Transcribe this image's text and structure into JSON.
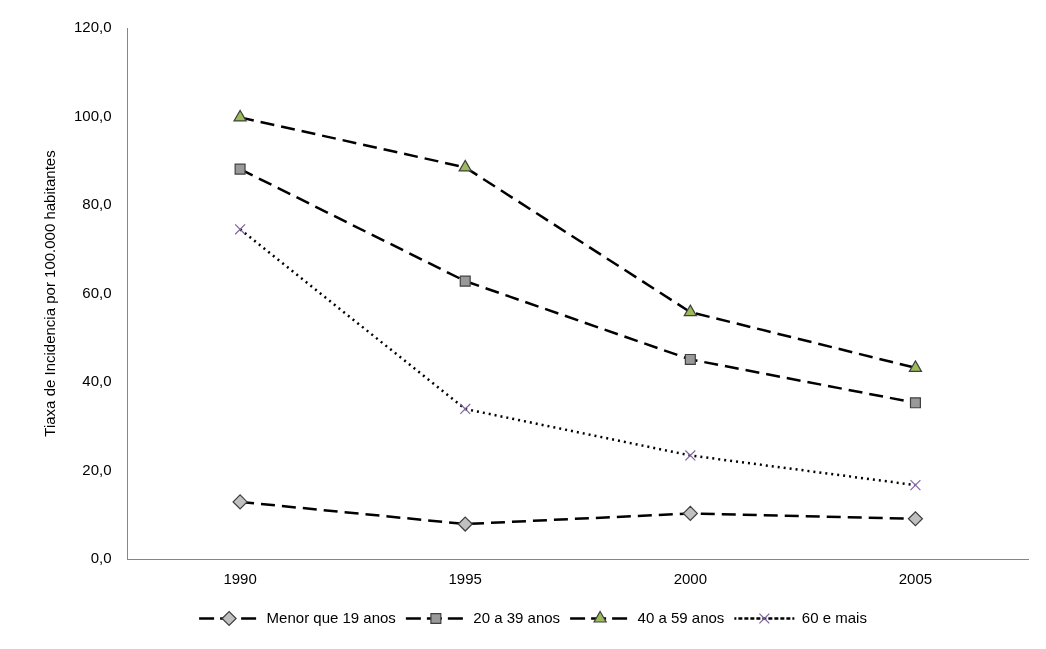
{
  "chart_data": {
    "type": "line",
    "ylabel": "Tiaxa de Incidencia por 100.000 habitantes",
    "categories": [
      "1990",
      "1995",
      "2000",
      "2005"
    ],
    "series": [
      {
        "name": "Menor que 19 anos",
        "color": "#c0c0c0",
        "marker": "diamond",
        "line_style": "dashed",
        "values": [
          12.9,
          7.9,
          10.3,
          9.1
        ]
      },
      {
        "name": "20 a 39 anos",
        "color": "#999999",
        "marker": "square",
        "line_style": "dashed",
        "values": [
          88.1,
          62.8,
          45.1,
          35.3
        ]
      },
      {
        "name": "40 a 59 anos",
        "color": "#9bbb59",
        "marker": "triangle",
        "line_style": "dashed",
        "values": [
          99.8,
          88.5,
          55.8,
          43.2
        ]
      },
      {
        "name": "60 e mais",
        "color": "#8064a2",
        "marker": "cross",
        "line_style": "dotted",
        "values": [
          74.5,
          33.9,
          23.4,
          16.7
        ]
      }
    ],
    "ylim": [
      0,
      120
    ],
    "yticks": [
      {
        "value": 0,
        "label": "0,0"
      },
      {
        "value": 20,
        "label": "20,0"
      },
      {
        "value": 40,
        "label": "40,0"
      },
      {
        "value": 60,
        "label": "60,0"
      },
      {
        "value": 80,
        "label": "80,0"
      },
      {
        "value": 100,
        "label": "100,0"
      },
      {
        "value": 120,
        "label": "120,0"
      }
    ],
    "grid": false,
    "legend": "bottom"
  }
}
